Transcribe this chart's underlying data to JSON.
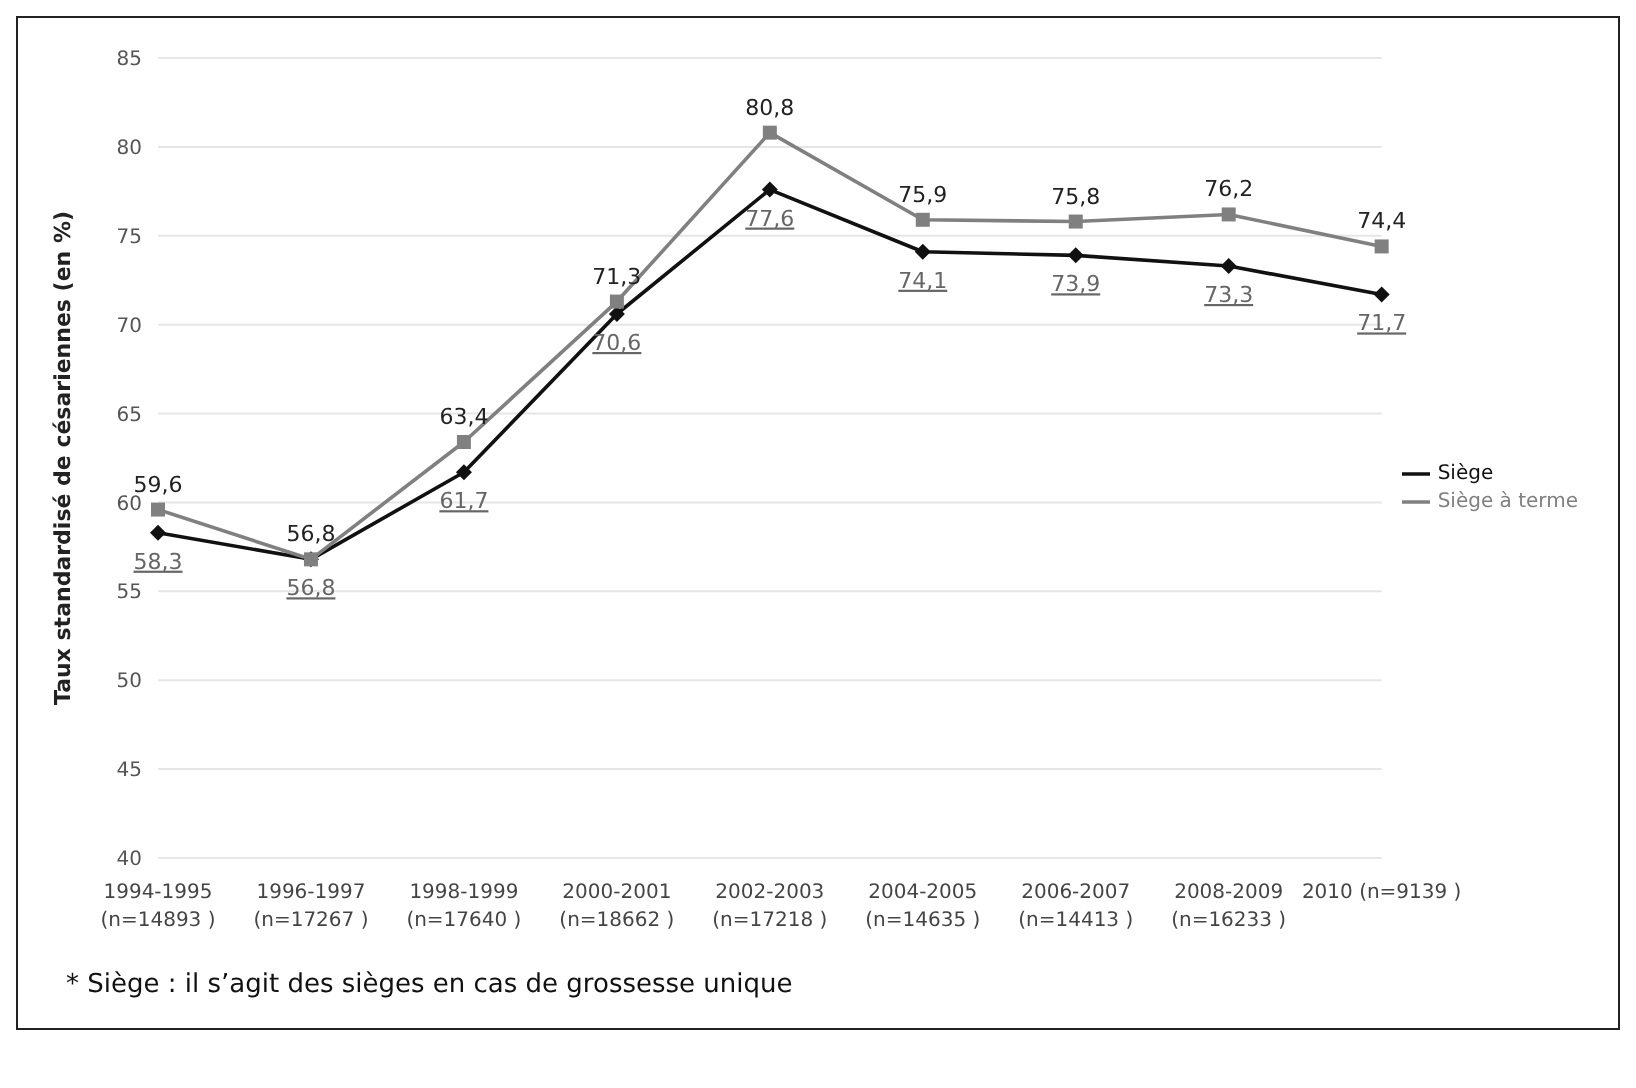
{
  "chart_data": {
    "type": "line",
    "ylabel": "Taux standardisé de césariennes (en %)",
    "categories": [
      "1994-1995\n(n=14893 )",
      "1996-1997\n(n=17267 )",
      "1998-1999\n(n=17640 )",
      "2000-2001\n(n=18662 )",
      "2002-2003\n(n=17218 )",
      "2004-2005\n(n=14635 )",
      "2006-2007\n(n=14413 )",
      "2008-2009\n(n=16233 )",
      "2010 (n=9139 )"
    ],
    "series": [
      {
        "name": "Siège",
        "color": "#111111",
        "marker": "diamond",
        "values": [
          58.3,
          56.8,
          61.7,
          70.6,
          77.6,
          74.1,
          73.9,
          73.3,
          71.7
        ],
        "value_labels": [
          "58,3",
          "56,8",
          "61,7",
          "70,6",
          "77,6",
          "74,1",
          "73,9",
          "73,3",
          "71,7"
        ]
      },
      {
        "name": "Siège à terme",
        "color": "#808080",
        "marker": "square",
        "values": [
          59.6,
          56.8,
          63.4,
          71.3,
          80.8,
          75.9,
          75.8,
          76.2,
          74.4
        ],
        "value_labels": [
          "59,6",
          "56,8",
          "63,4",
          "71,3",
          "80,8",
          "75,9",
          "75,8",
          "76,2",
          "74,4"
        ]
      }
    ],
    "ylim": [
      40,
      85
    ],
    "yticks": [
      40,
      45,
      50,
      55,
      60,
      65,
      70,
      75,
      80,
      85
    ],
    "grid": "y",
    "legend": "right",
    "line_style": "solid",
    "annotations": [
      "* Siège : il s’agit des sièges en cas de grossesse unique"
    ]
  }
}
